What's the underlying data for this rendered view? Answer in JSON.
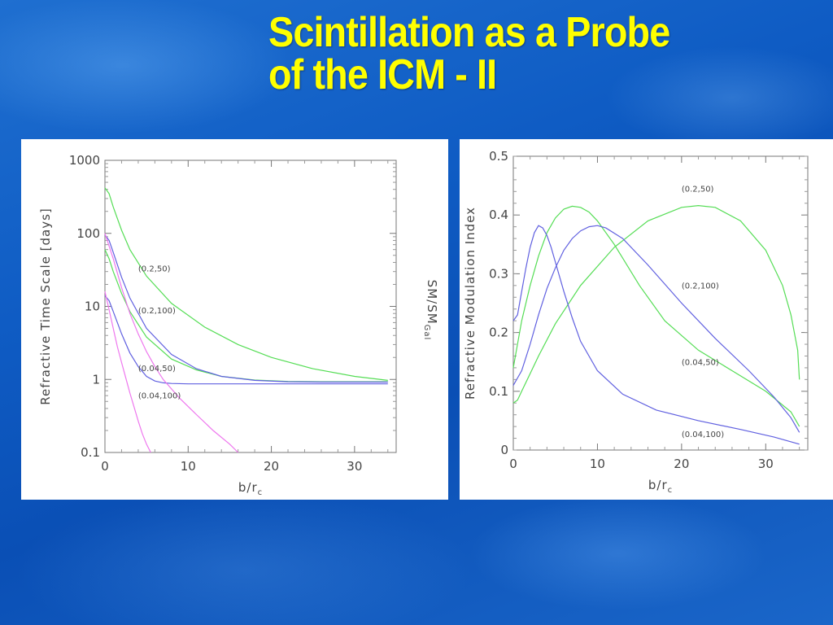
{
  "slide": {
    "title_line1": "Scintillation as a Probe",
    "title_line2": "of the ICM - II"
  },
  "colors": {
    "title": "#ffff00",
    "green": "#55dd55",
    "blue": "#6060e0",
    "magenta": "#ee77ee"
  },
  "chart_data": [
    {
      "type": "line",
      "yscale": "log",
      "xlim": [
        0,
        35
      ],
      "ylim": [
        0.1,
        1000
      ],
      "xticks": [
        0,
        10,
        20,
        30
      ],
      "yticks": [
        0.1,
        1,
        10,
        100,
        1000
      ],
      "ytick_labels": [
        "0.1",
        "1",
        "10",
        "100",
        "1000"
      ],
      "xlabel": "b/r",
      "xlabel_sub": "c",
      "ylabel": "Refractive Time Scale [days]",
      "annotations": [
        {
          "text": "(0.2,50)",
          "x": 4,
          "y": 30
        },
        {
          "text": "(0.2,100)",
          "x": 4,
          "y": 8
        },
        {
          "text": "(0.04,50)",
          "x": 4,
          "y": 1.3
        },
        {
          "text": "(0.04,100)",
          "x": 4,
          "y": 0.55
        }
      ],
      "series": [
        {
          "color": "green",
          "x": [
            0,
            0.5,
            1,
            2,
            3,
            5,
            8,
            12,
            16,
            20,
            25,
            30,
            34
          ],
          "y": [
            420,
            350,
            230,
            110,
            60,
            26,
            11,
            5.2,
            3.0,
            2.0,
            1.4,
            1.1,
            0.97
          ]
        },
        {
          "color": "green",
          "x": [
            0,
            0.5,
            1,
            2,
            3,
            5,
            8,
            11,
            14,
            18,
            22,
            26,
            30,
            34
          ],
          "y": [
            60,
            45,
            30,
            15,
            8.5,
            3.8,
            1.9,
            1.35,
            1.1,
            0.98,
            0.94,
            0.93,
            0.93,
            0.93
          ]
        },
        {
          "color": "blue",
          "x": [
            0,
            0.5,
            1,
            2,
            3,
            5,
            8,
            11,
            14,
            18,
            22,
            26,
            30,
            34
          ],
          "y": [
            95,
            80,
            55,
            25,
            13,
            5.0,
            2.2,
            1.4,
            1.1,
            0.97,
            0.93,
            0.92,
            0.92,
            0.92
          ]
        },
        {
          "color": "blue",
          "x": [
            0,
            0.5,
            1,
            2,
            3,
            4,
            5,
            6,
            7,
            8,
            10,
            14,
            20,
            27,
            34
          ],
          "y": [
            14,
            12,
            8.5,
            4.2,
            2.3,
            1.5,
            1.1,
            0.95,
            0.9,
            0.88,
            0.87,
            0.87,
            0.87,
            0.87,
            0.87
          ]
        },
        {
          "color": "magenta",
          "x": [
            0,
            1,
            2,
            3,
            4,
            5,
            6,
            7,
            9,
            11,
            13,
            15,
            16
          ],
          "y": [
            100,
            45,
            18,
            8,
            4.2,
            2.4,
            1.5,
            1.0,
            0.55,
            0.33,
            0.2,
            0.13,
            0.1
          ]
        },
        {
          "color": "magenta",
          "x": [
            0,
            0.5,
            1,
            1.5,
            2,
            2.5,
            3,
            3.5,
            4,
            4.5,
            5,
            5.5
          ],
          "y": [
            16,
            9,
            5,
            2.8,
            1.7,
            1.05,
            0.65,
            0.42,
            0.27,
            0.18,
            0.13,
            0.1
          ]
        }
      ]
    },
    {
      "type": "line",
      "ylabel_left_rotated": "SM/SM",
      "ylabel_left_sub": "Gal",
      "xlim": [
        0,
        35
      ],
      "ylim": [
        0,
        0.5
      ],
      "xticks": [
        0,
        10,
        20,
        30
      ],
      "yticks": [
        0,
        0.1,
        0.2,
        0.3,
        0.4,
        0.5
      ],
      "ytick_labels": [
        "0",
        "0.1",
        "0.2",
        "0.3",
        "0.4",
        "0.5"
      ],
      "xlabel": "b/r",
      "xlabel_sub": "c",
      "ylabel": "Refractive Modulation Index",
      "annotations": [
        {
          "text": "(0.2,50)",
          "x": 20,
          "y": 0.44
        },
        {
          "text": "(0.2,100)",
          "x": 20,
          "y": 0.275
        },
        {
          "text": "(0.04,50)",
          "x": 20,
          "y": 0.145
        },
        {
          "text": "(0.04,100)",
          "x": 20,
          "y": 0.022
        }
      ],
      "series": [
        {
          "color": "green",
          "x": [
            0,
            0.5,
            1,
            2,
            3,
            5,
            8,
            12,
            16,
            20,
            22,
            24,
            27,
            30,
            32,
            33,
            33.8,
            34
          ],
          "y": [
            0.08,
            0.085,
            0.1,
            0.13,
            0.16,
            0.215,
            0.28,
            0.345,
            0.39,
            0.413,
            0.416,
            0.413,
            0.39,
            0.34,
            0.28,
            0.23,
            0.17,
            0.12
          ]
        },
        {
          "color": "green",
          "x": [
            0,
            1,
            2,
            3,
            4,
            5,
            6,
            7,
            8,
            9,
            10,
            12,
            15,
            18,
            22,
            26,
            30,
            33,
            34
          ],
          "y": [
            0.14,
            0.22,
            0.28,
            0.33,
            0.37,
            0.395,
            0.41,
            0.415,
            0.413,
            0.405,
            0.39,
            0.35,
            0.28,
            0.22,
            0.17,
            0.135,
            0.1,
            0.065,
            0.04
          ]
        },
        {
          "color": "blue",
          "x": [
            0,
            1,
            2,
            3,
            4,
            5,
            6,
            7,
            8,
            9,
            10,
            11,
            13,
            16,
            20,
            24,
            28,
            31,
            33,
            34
          ],
          "y": [
            0.11,
            0.135,
            0.18,
            0.23,
            0.275,
            0.31,
            0.34,
            0.36,
            0.373,
            0.38,
            0.382,
            0.378,
            0.36,
            0.315,
            0.25,
            0.19,
            0.135,
            0.09,
            0.055,
            0.03
          ]
        },
        {
          "color": "blue",
          "x": [
            0,
            0.5,
            1,
            1.5,
            2,
            2.5,
            3,
            3.5,
            4,
            4.5,
            5,
            6,
            7,
            8,
            10,
            13,
            17,
            22,
            27,
            31,
            34
          ],
          "y": [
            0.22,
            0.23,
            0.27,
            0.31,
            0.345,
            0.37,
            0.382,
            0.378,
            0.365,
            0.345,
            0.32,
            0.27,
            0.225,
            0.185,
            0.135,
            0.095,
            0.068,
            0.05,
            0.035,
            0.022,
            0.01
          ]
        }
      ]
    }
  ]
}
